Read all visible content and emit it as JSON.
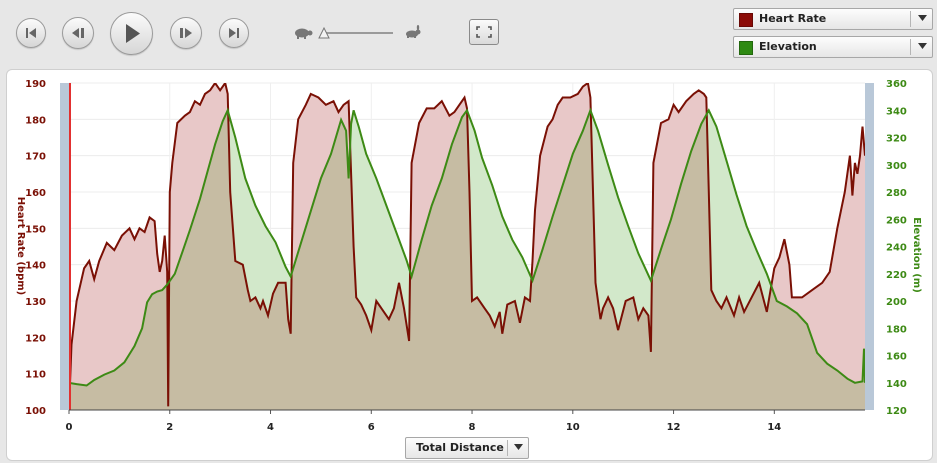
{
  "toolbar": {
    "buttons": [
      "skip-to-start",
      "step-back",
      "play",
      "step-forward",
      "skip-to-end"
    ],
    "speed_slider": {
      "value": 0.0
    }
  },
  "series_selectors": [
    {
      "label": "Heart Rate",
      "color": "#8b0b07"
    },
    {
      "label": "Elevation",
      "color": "#2e8a12"
    }
  ],
  "x_axis_selector": {
    "label": "Total Distance"
  },
  "colors": {
    "heart_rate": "#7a1005",
    "heart_rate_fill": "#e8c8c8",
    "elevation": "#3d8a15",
    "elevation_fill": "#d2e8ca",
    "overlap_fill": "#c6bca3",
    "cursor": "#e23030"
  },
  "chart_data": {
    "type": "line",
    "x_label": "",
    "x_range": [
      0,
      15.8
    ],
    "x_ticks": [
      "0",
      "2",
      "4",
      "6",
      "8",
      "10",
      "12",
      "14"
    ],
    "left_axis": {
      "label": "Heart Rate (bpm)",
      "range": [
        100,
        190
      ],
      "ticks": [
        "100",
        "110",
        "120",
        "130",
        "140",
        "150",
        "160",
        "170",
        "180",
        "190"
      ]
    },
    "right_axis": {
      "label": "Elevation (m)",
      "range": [
        120,
        360
      ],
      "ticks": [
        "120",
        "140",
        "160",
        "180",
        "200",
        "220",
        "240",
        "260",
        "280",
        "300",
        "320",
        "340",
        "360"
      ]
    },
    "grid": true,
    "cursor_x": 0,
    "series": [
      {
        "name": "Heart Rate",
        "axis": "left",
        "points": [
          [
            0,
            100
          ],
          [
            0.05,
            118
          ],
          [
            0.15,
            130
          ],
          [
            0.3,
            139
          ],
          [
            0.4,
            141
          ],
          [
            0.5,
            136
          ],
          [
            0.6,
            141
          ],
          [
            0.75,
            146
          ],
          [
            0.9,
            144
          ],
          [
            1.05,
            148
          ],
          [
            1.2,
            150
          ],
          [
            1.3,
            147
          ],
          [
            1.4,
            150
          ],
          [
            1.5,
            149
          ],
          [
            1.6,
            153
          ],
          [
            1.7,
            152
          ],
          [
            1.75,
            143
          ],
          [
            1.8,
            138
          ],
          [
            1.85,
            141
          ],
          [
            1.9,
            148
          ],
          [
            1.95,
            138
          ],
          [
            1.97,
            101
          ],
          [
            2.0,
            160
          ],
          [
            2.05,
            168
          ],
          [
            2.15,
            179
          ],
          [
            2.3,
            181
          ],
          [
            2.4,
            182
          ],
          [
            2.5,
            185
          ],
          [
            2.6,
            184
          ],
          [
            2.7,
            187
          ],
          [
            2.8,
            188
          ],
          [
            2.9,
            190
          ],
          [
            3.0,
            188
          ],
          [
            3.1,
            190
          ],
          [
            3.15,
            187
          ],
          [
            3.2,
            160
          ],
          [
            3.3,
            141
          ],
          [
            3.45,
            140
          ],
          [
            3.55,
            133
          ],
          [
            3.6,
            130
          ],
          [
            3.7,
            131
          ],
          [
            3.8,
            128
          ],
          [
            3.85,
            130
          ],
          [
            3.95,
            126
          ],
          [
            4.05,
            132
          ],
          [
            4.15,
            135
          ],
          [
            4.3,
            135
          ],
          [
            4.35,
            125
          ],
          [
            4.4,
            121
          ],
          [
            4.45,
            168
          ],
          [
            4.55,
            180
          ],
          [
            4.7,
            184
          ],
          [
            4.8,
            187
          ],
          [
            4.95,
            186
          ],
          [
            5.1,
            184
          ],
          [
            5.25,
            185
          ],
          [
            5.35,
            182
          ],
          [
            5.45,
            184
          ],
          [
            5.55,
            185
          ],
          [
            5.6,
            165
          ],
          [
            5.65,
            145
          ],
          [
            5.7,
            131
          ],
          [
            5.8,
            129
          ],
          [
            5.9,
            126
          ],
          [
            6.0,
            122
          ],
          [
            6.1,
            130
          ],
          [
            6.25,
            127
          ],
          [
            6.35,
            125
          ],
          [
            6.45,
            128
          ],
          [
            6.55,
            135
          ],
          [
            6.65,
            128
          ],
          [
            6.75,
            119
          ],
          [
            6.8,
            168
          ],
          [
            6.95,
            179
          ],
          [
            7.1,
            183
          ],
          [
            7.25,
            183
          ],
          [
            7.4,
            185
          ],
          [
            7.55,
            181
          ],
          [
            7.65,
            182
          ],
          [
            7.75,
            184
          ],
          [
            7.85,
            186
          ],
          [
            7.9,
            183
          ],
          [
            7.95,
            160
          ],
          [
            8.0,
            130
          ],
          [
            8.1,
            131
          ],
          [
            8.25,
            128
          ],
          [
            8.35,
            126
          ],
          [
            8.45,
            123
          ],
          [
            8.55,
            127
          ],
          [
            8.6,
            121
          ],
          [
            8.7,
            129
          ],
          [
            8.85,
            130
          ],
          [
            8.95,
            124
          ],
          [
            9.05,
            131
          ],
          [
            9.15,
            130
          ],
          [
            9.2,
            141
          ],
          [
            9.25,
            155
          ],
          [
            9.35,
            170
          ],
          [
            9.5,
            178
          ],
          [
            9.6,
            180
          ],
          [
            9.7,
            184
          ],
          [
            9.8,
            186
          ],
          [
            9.95,
            186
          ],
          [
            10.1,
            187
          ],
          [
            10.2,
            189
          ],
          [
            10.3,
            190
          ],
          [
            10.35,
            186
          ],
          [
            10.45,
            135
          ],
          [
            10.55,
            125
          ],
          [
            10.6,
            128
          ],
          [
            10.7,
            131
          ],
          [
            10.8,
            128
          ],
          [
            10.9,
            122
          ],
          [
            11.05,
            130
          ],
          [
            11.2,
            131
          ],
          [
            11.3,
            125
          ],
          [
            11.4,
            128
          ],
          [
            11.5,
            126
          ],
          [
            11.55,
            116
          ],
          [
            11.6,
            168
          ],
          [
            11.75,
            179
          ],
          [
            11.9,
            180
          ],
          [
            12.0,
            184
          ],
          [
            12.1,
            182
          ],
          [
            12.25,
            185
          ],
          [
            12.4,
            187
          ],
          [
            12.5,
            188
          ],
          [
            12.6,
            187
          ],
          [
            12.65,
            186
          ],
          [
            12.7,
            160
          ],
          [
            12.75,
            133
          ],
          [
            12.85,
            130
          ],
          [
            12.95,
            128
          ],
          [
            13.05,
            131
          ],
          [
            13.2,
            126
          ],
          [
            13.3,
            131
          ],
          [
            13.4,
            127
          ],
          [
            13.55,
            131
          ],
          [
            13.7,
            135
          ],
          [
            13.85,
            127
          ],
          [
            14.0,
            139
          ],
          [
            14.1,
            142
          ],
          [
            14.2,
            147
          ],
          [
            14.3,
            140
          ],
          [
            14.35,
            131
          ],
          [
            14.55,
            131
          ],
          [
            14.75,
            133
          ],
          [
            14.95,
            135
          ],
          [
            15.1,
            138
          ],
          [
            15.25,
            150
          ],
          [
            15.4,
            160
          ],
          [
            15.5,
            170
          ],
          [
            15.55,
            159
          ],
          [
            15.6,
            168
          ],
          [
            15.65,
            165
          ],
          [
            15.7,
            170
          ],
          [
            15.75,
            178
          ],
          [
            15.8,
            170
          ]
        ]
      },
      {
        "name": "Elevation",
        "axis": "right",
        "points": [
          [
            0,
            140
          ],
          [
            0.15,
            139
          ],
          [
            0.35,
            138
          ],
          [
            0.5,
            142
          ],
          [
            0.7,
            146
          ],
          [
            0.9,
            149
          ],
          [
            1.1,
            155
          ],
          [
            1.3,
            167
          ],
          [
            1.45,
            180
          ],
          [
            1.55,
            199
          ],
          [
            1.65,
            205
          ],
          [
            1.75,
            207
          ],
          [
            1.85,
            208
          ],
          [
            1.95,
            212
          ],
          [
            2.1,
            220
          ],
          [
            2.25,
            236
          ],
          [
            2.4,
            252
          ],
          [
            2.6,
            275
          ],
          [
            2.75,
            295
          ],
          [
            2.9,
            315
          ],
          [
            3.05,
            332
          ],
          [
            3.15,
            340
          ],
          [
            3.3,
            320
          ],
          [
            3.5,
            290
          ],
          [
            3.7,
            270
          ],
          [
            3.9,
            255
          ],
          [
            4.1,
            243
          ],
          [
            4.3,
            225
          ],
          [
            4.4,
            218
          ],
          [
            4.6,
            242
          ],
          [
            4.8,
            266
          ],
          [
            5.0,
            290
          ],
          [
            5.2,
            308
          ],
          [
            5.4,
            333
          ],
          [
            5.5,
            325
          ],
          [
            5.55,
            290
          ],
          [
            5.6,
            330
          ],
          [
            5.65,
            340
          ],
          [
            5.75,
            328
          ],
          [
            5.9,
            308
          ],
          [
            6.1,
            290
          ],
          [
            6.3,
            270
          ],
          [
            6.5,
            250
          ],
          [
            6.7,
            230
          ],
          [
            6.8,
            218
          ],
          [
            7.0,
            245
          ],
          [
            7.2,
            270
          ],
          [
            7.4,
            290
          ],
          [
            7.6,
            315
          ],
          [
            7.8,
            335
          ],
          [
            7.9,
            340
          ],
          [
            8.05,
            325
          ],
          [
            8.2,
            305
          ],
          [
            8.4,
            285
          ],
          [
            8.6,
            262
          ],
          [
            8.8,
            245
          ],
          [
            9.0,
            232
          ],
          [
            9.2,
            215
          ],
          [
            9.4,
            238
          ],
          [
            9.6,
            262
          ],
          [
            9.8,
            285
          ],
          [
            10.0,
            308
          ],
          [
            10.2,
            325
          ],
          [
            10.35,
            340
          ],
          [
            10.5,
            325
          ],
          [
            10.7,
            300
          ],
          [
            10.9,
            276
          ],
          [
            11.1,
            255
          ],
          [
            11.3,
            235
          ],
          [
            11.55,
            215
          ],
          [
            11.75,
            238
          ],
          [
            11.95,
            260
          ],
          [
            12.15,
            286
          ],
          [
            12.35,
            310
          ],
          [
            12.55,
            330
          ],
          [
            12.7,
            340
          ],
          [
            12.85,
            328
          ],
          [
            13.05,
            303
          ],
          [
            13.25,
            278
          ],
          [
            13.45,
            255
          ],
          [
            13.65,
            237
          ],
          [
            13.85,
            220
          ],
          [
            14.05,
            200
          ],
          [
            14.25,
            196
          ],
          [
            14.45,
            191
          ],
          [
            14.65,
            183
          ],
          [
            14.85,
            162
          ],
          [
            15.05,
            154
          ],
          [
            15.25,
            149
          ],
          [
            15.45,
            143
          ],
          [
            15.6,
            140
          ],
          [
            15.75,
            141
          ],
          [
            15.78,
            165
          ],
          [
            15.8,
            140
          ]
        ]
      }
    ]
  }
}
